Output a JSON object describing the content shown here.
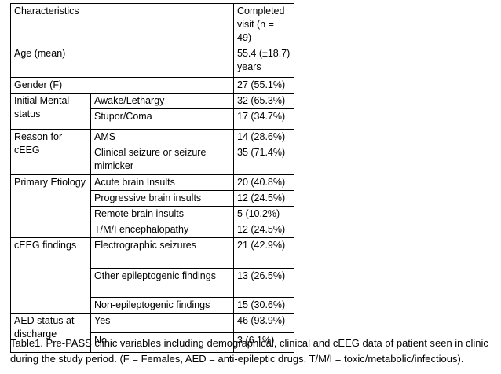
{
  "table": {
    "header": [
      "Characteristics",
      "Completed visit (n = 49)"
    ],
    "rows": [
      {
        "label": "Age (mean)",
        "items": [
          {
            "value": "55.4 (±18.7) years"
          }
        ]
      },
      {
        "label": "Gender (F)",
        "items": [
          {
            "value": "27 (55.1%)"
          }
        ]
      },
      {
        "label": "Initial Mental status",
        "items": [
          {
            "sub": "Awake/Lethargy",
            "value": "32 (65.3%)"
          },
          {
            "sub": "Stupor/Coma",
            "value": "17 (34.7%)"
          }
        ]
      },
      {
        "label": "Reason for cEEG",
        "items": [
          {
            "sub": "AMS",
            "value": "14 (28.6%)"
          },
          {
            "sub": "Clinical seizure or seizure mimicker",
            "value": "35 (71.4%)"
          }
        ]
      },
      {
        "label": "Primary Etiology",
        "items": [
          {
            "sub": "Acute brain Insults",
            "value": "20 (40.8%)"
          },
          {
            "sub": "Progressive brain insults",
            "value": "12 (24.5%)"
          },
          {
            "sub": "Remote brain insults",
            "value": "5 (10.2%)"
          },
          {
            "sub": "T/M/I encephalopathy",
            "value": "12 (24.5%)"
          }
        ]
      },
      {
        "label": "cEEG findings",
        "items": [
          {
            "sub": "Electrographic seizures",
            "value": "21 (42.9%)"
          },
          {
            "sub": "Other epileptogenic findings",
            "value": "13 (26.5%)"
          },
          {
            "sub": "Non-epileptogenic findings",
            "value": "15 (30.6%)"
          }
        ]
      },
      {
        "label": "AED status at discharge",
        "items": [
          {
            "sub": "Yes",
            "value": "46 (93.9%)"
          },
          {
            "sub": "No",
            "value": "3 (6.1%)"
          }
        ]
      }
    ]
  },
  "caption": "Table1. Pre-PASS clinic variables including demographical, clinical and cEEG data of patient seen in clinic during the study period. (F = Females, AED = anti-epileptic drugs, T/M/I = toxic/metabolic/infectious)."
}
